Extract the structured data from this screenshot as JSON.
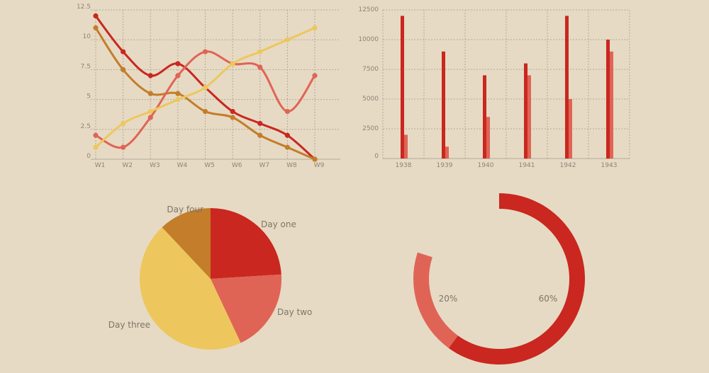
{
  "colors": {
    "red": "#c9271f",
    "salmon": "#e06456",
    "yellow": "#edc75d",
    "orange": "#c47d2a",
    "background": "#e6dac4"
  },
  "chart_data": [
    {
      "type": "line",
      "categories": [
        "W1",
        "W2",
        "W3",
        "W4",
        "W5",
        "W6",
        "W7",
        "W8",
        "W9"
      ],
      "ylim": [
        0,
        12.5
      ],
      "yticks": [
        "0",
        "2.5",
        "5",
        "7.5",
        "10",
        "12.5"
      ],
      "grid": true,
      "series": [
        {
          "color": "#c9271f",
          "values": [
            12,
            9,
            7,
            8,
            6,
            4,
            3,
            2,
            0
          ]
        },
        {
          "color": "#c47d2a",
          "values": [
            11,
            7.5,
            5.5,
            5.5,
            4,
            3.5,
            2,
            1,
            0
          ]
        },
        {
          "color": "#e06456",
          "values": [
            2,
            1,
            3.5,
            7,
            9,
            8,
            7.7,
            4,
            7
          ]
        },
        {
          "color": "#edc75d",
          "values": [
            1,
            3,
            4,
            5,
            6,
            8,
            9,
            10,
            11
          ]
        }
      ]
    },
    {
      "type": "bar",
      "categories": [
        "1938",
        "1939",
        "1940",
        "1941",
        "1942",
        "1943"
      ],
      "ylim": [
        0,
        12500
      ],
      "yticks": [
        "0",
        "2500",
        "5000",
        "7500",
        "10000",
        "12500"
      ],
      "grid": true,
      "series": [
        {
          "color": "#c9271f",
          "values": [
            12000,
            9000,
            7000,
            8000,
            12000,
            10000
          ]
        },
        {
          "color": "#e06456",
          "values": [
            2000,
            1000,
            3500,
            7000,
            5000,
            9000
          ]
        }
      ]
    },
    {
      "type": "pie",
      "labels": [
        "Day one",
        "Day two",
        "Day three",
        "Day four"
      ],
      "values": [
        24,
        19,
        45,
        12
      ],
      "colors": [
        "#c9271f",
        "#e06456",
        "#edc75d",
        "#c47d2a"
      ]
    },
    {
      "type": "pie",
      "variant": "donut",
      "labels": [
        "60%",
        "20%"
      ],
      "values": [
        60,
        20
      ],
      "colors": [
        "#c9271f",
        "#e06456"
      ]
    }
  ]
}
